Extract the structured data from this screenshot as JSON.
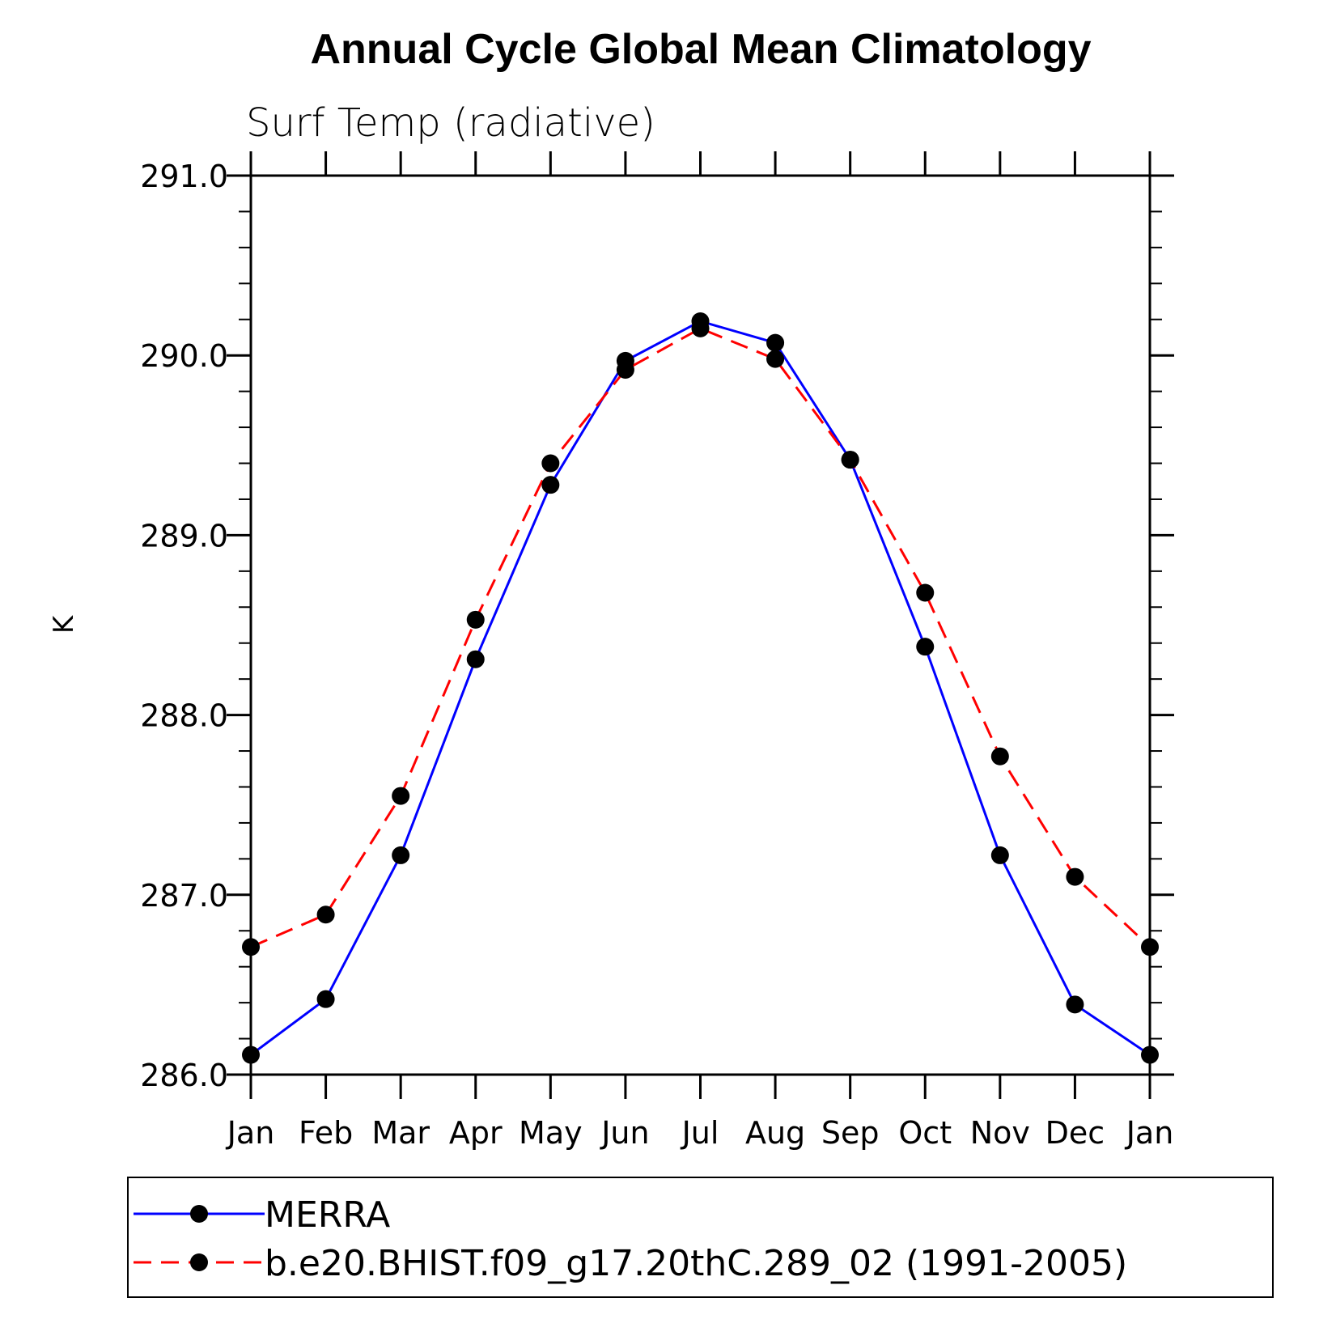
{
  "chart_data": {
    "type": "line",
    "title": "Annual Cycle Global Mean Climatology",
    "subtitle": "Surf Temp (radiative)",
    "xlabel": "",
    "ylabel": "K",
    "categories": [
      "Jan",
      "Feb",
      "Mar",
      "Apr",
      "May",
      "Jun",
      "Jul",
      "Aug",
      "Sep",
      "Oct",
      "Nov",
      "Dec",
      "Jan"
    ],
    "yticks": [
      "286.0",
      "287.0",
      "288.0",
      "289.0",
      "290.0",
      "291.0"
    ],
    "ylim": [
      286.0,
      291.0
    ],
    "legend_position": "bottom",
    "series": [
      {
        "name": "MERRA",
        "color": "#0000ff",
        "style": "solid",
        "marker": "filled-circle",
        "values": [
          286.11,
          286.42,
          287.22,
          288.31,
          289.28,
          289.97,
          290.19,
          290.07,
          289.42,
          288.38,
          287.22,
          286.39,
          286.11
        ]
      },
      {
        "name": "b.e20.BHIST.f09_g17.20thC.289_02 (1991-2005)",
        "color": "#ff0000",
        "style": "dashed",
        "marker": "filled-circle",
        "values": [
          286.71,
          286.89,
          287.55,
          288.53,
          289.4,
          289.92,
          290.15,
          289.98,
          289.42,
          288.68,
          287.77,
          287.1,
          286.71
        ]
      }
    ]
  }
}
